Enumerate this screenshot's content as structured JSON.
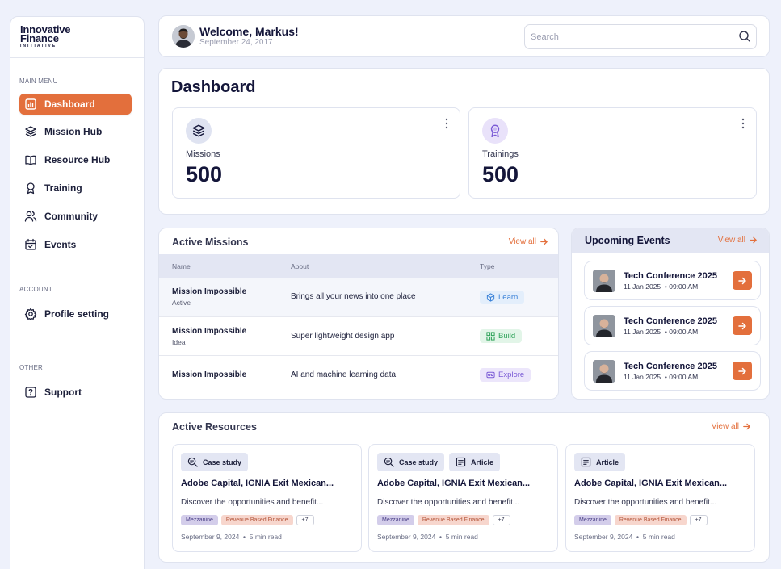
{
  "brand": {
    "line1": "Innovative",
    "line2": "Finance",
    "line3": "INITIATIVE"
  },
  "sidebar": {
    "sections": [
      {
        "label": "MAIN MENU"
      },
      {
        "label": "ACCOUNT"
      },
      {
        "label": "OTHER"
      }
    ],
    "items": [
      {
        "label": "Dashboard",
        "icon": "chart-icon",
        "active": true
      },
      {
        "label": "Mission Hub",
        "icon": "layers-icon"
      },
      {
        "label": "Resource Hub",
        "icon": "book-icon"
      },
      {
        "label": "Training",
        "icon": "award-icon"
      },
      {
        "label": "Community",
        "icon": "users-icon"
      },
      {
        "label": "Events",
        "icon": "calendar-icon"
      },
      {
        "label": "Profile setting",
        "icon": "gear-icon"
      },
      {
        "label": "Support",
        "icon": "help-icon"
      }
    ]
  },
  "header": {
    "welcome": "Welcome, Markus!",
    "date": "September 24, 2017",
    "search_placeholder": "Search"
  },
  "dashboard": {
    "title": "Dashboard",
    "stats": [
      {
        "label": "Missions",
        "value": "500",
        "icon": "layers-icon"
      },
      {
        "label": "Trainings",
        "value": "500",
        "icon": "award-icon"
      }
    ]
  },
  "active_missions": {
    "title": "Active Missions",
    "view_all": "View all",
    "columns": [
      "Name",
      "About",
      "Type"
    ],
    "rows": [
      {
        "name": "Mission Impossible",
        "status": "Active",
        "about": "Brings all your news into one place",
        "type": "Learn"
      },
      {
        "name": "Mission Impossible",
        "status": "Idea",
        "about": "Super lightweight design app",
        "type": "Build"
      },
      {
        "name": "Mission Impossible",
        "status": "",
        "about": "AI and machine learning data",
        "type": "Explore"
      }
    ]
  },
  "events": {
    "title": "Upcoming Events",
    "view_all": "View all",
    "items": [
      {
        "title": "Tech Conference 2025",
        "date": "11 Jan 2025",
        "time": "09:00 AM"
      },
      {
        "title": "Tech Conference 2025",
        "date": "11 Jan 2025",
        "time": "09:00 AM"
      },
      {
        "title": "Tech Conference 2025",
        "date": "11 Jan 2025",
        "time": "09:00 AM"
      }
    ]
  },
  "resources": {
    "title": "Active Resources",
    "view_all": "View all",
    "items": [
      {
        "tags": [
          "Case study"
        ],
        "title": "Adobe Capital, IGNIA Exit Mexican...",
        "desc": "Discover the opportunities and benefit...",
        "chips": [
          "Mezzanine",
          "Revenue Based Finance",
          "+7"
        ],
        "date": "September 9, 2024",
        "read": "5 min read"
      },
      {
        "tags": [
          "Case study",
          "Article"
        ],
        "title": "Adobe Capital, IGNIA Exit Mexican...",
        "desc": "Discover the opportunities and benefit...",
        "chips": [
          "Mezzanine",
          "Revenue Based Finance",
          "+7"
        ],
        "date": "September 9, 2024",
        "read": "5 min read"
      },
      {
        "tags": [
          "Article"
        ],
        "title": "Adobe Capital, IGNIA Exit Mexican...",
        "desc": "Discover the opportunities and benefit...",
        "chips": [
          "Mezzanine",
          "Revenue Based Finance",
          "+7"
        ],
        "date": "September 9, 2024",
        "read": "5 min read"
      }
    ]
  },
  "colors": {
    "accent": "#e36f3c",
    "navy": "#14163a",
    "learn": "#3b82d8",
    "build": "#2fa35a",
    "explore": "#7b5bd6"
  }
}
